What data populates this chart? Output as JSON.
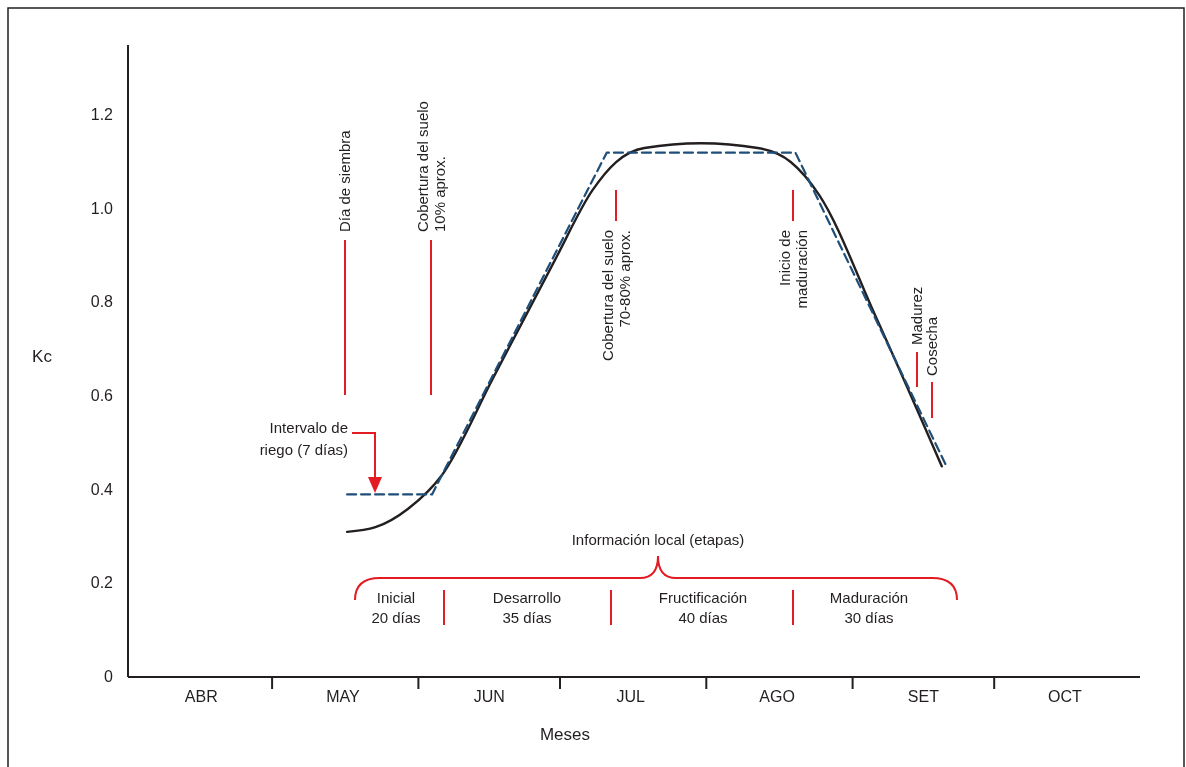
{
  "chart_data": {
    "type": "line",
    "xlabel": "Meses",
    "ylabel": "Kc",
    "xlim": [
      "--04-01",
      "--11-01"
    ],
    "ylim": [
      0,
      1.35
    ],
    "xticks": [
      {
        "value": "--04-16",
        "label": "ABR"
      },
      {
        "value": "--05-01",
        "label": null
      },
      {
        "value": "--05-16",
        "label": "MAY"
      },
      {
        "value": "--06-01",
        "label": null
      },
      {
        "value": "--06-16",
        "label": "JUN"
      },
      {
        "value": "--07-01",
        "label": null
      },
      {
        "value": "--07-16",
        "label": "JUL"
      },
      {
        "value": "--08-01",
        "label": null
      },
      {
        "value": "--08-16",
        "label": "AGO"
      },
      {
        "value": "--09-01",
        "label": null
      },
      {
        "value": "--09-16",
        "label": "SET"
      },
      {
        "value": "--10-01",
        "label": null
      },
      {
        "value": "--10-16",
        "label": "OCT"
      }
    ],
    "yticks": [
      0,
      {
        "value": 0.2,
        "label": "0.2"
      },
      {
        "value": 0.4,
        "label": "0.4"
      },
      {
        "value": 0.6,
        "label": "0.6"
      },
      {
        "value": 0.8,
        "label": "0.8"
      },
      {
        "value": 1.0,
        "label": "1.0"
      },
      {
        "value": 1.2,
        "label": "1.2"
      }
    ],
    "grid": false,
    "series": [
      {
        "color": "#231f20",
        "line_style": "solid",
        "x": [
          "--05-17",
          "--05-23",
          "--05-30",
          "--06-06",
          "--06-17",
          "--06-30",
          "--07-08",
          "--07-13",
          "--07-19",
          "--07-31",
          "--08-12",
          "--08-19",
          "--08-25",
          "--09-06",
          "--09-20"
        ],
        "values": [
          0.31,
          0.32,
          0.36,
          0.43,
          0.64,
          0.89,
          1.04,
          1.1,
          1.13,
          1.14,
          1.13,
          1.1,
          1.03,
          0.77,
          0.45
        ]
      },
      {
        "color": "#1f4e79",
        "line_style": "dashed",
        "x": [
          "--05-17",
          "--06-04",
          "--07-11",
          "--08-20",
          "--09-21"
        ],
        "values": [
          0.39,
          0.39,
          1.12,
          1.12,
          0.45
        ]
      }
    ],
    "annotations": [
      "Día de siembra",
      "Cobertura del suelo\n10% aprox.",
      "Cobertura del suelo\n70-80% aprox.",
      "Inicio de\nmaduración",
      "Madurez",
      "Cosecha",
      "Intervalo de\nriego (7 días)",
      "Información local (etapas)",
      "Inicial\n20 días",
      "Desarrollo\n35 días",
      "Fructificación\n40 días",
      "Maduración\n30 días"
    ]
  }
}
